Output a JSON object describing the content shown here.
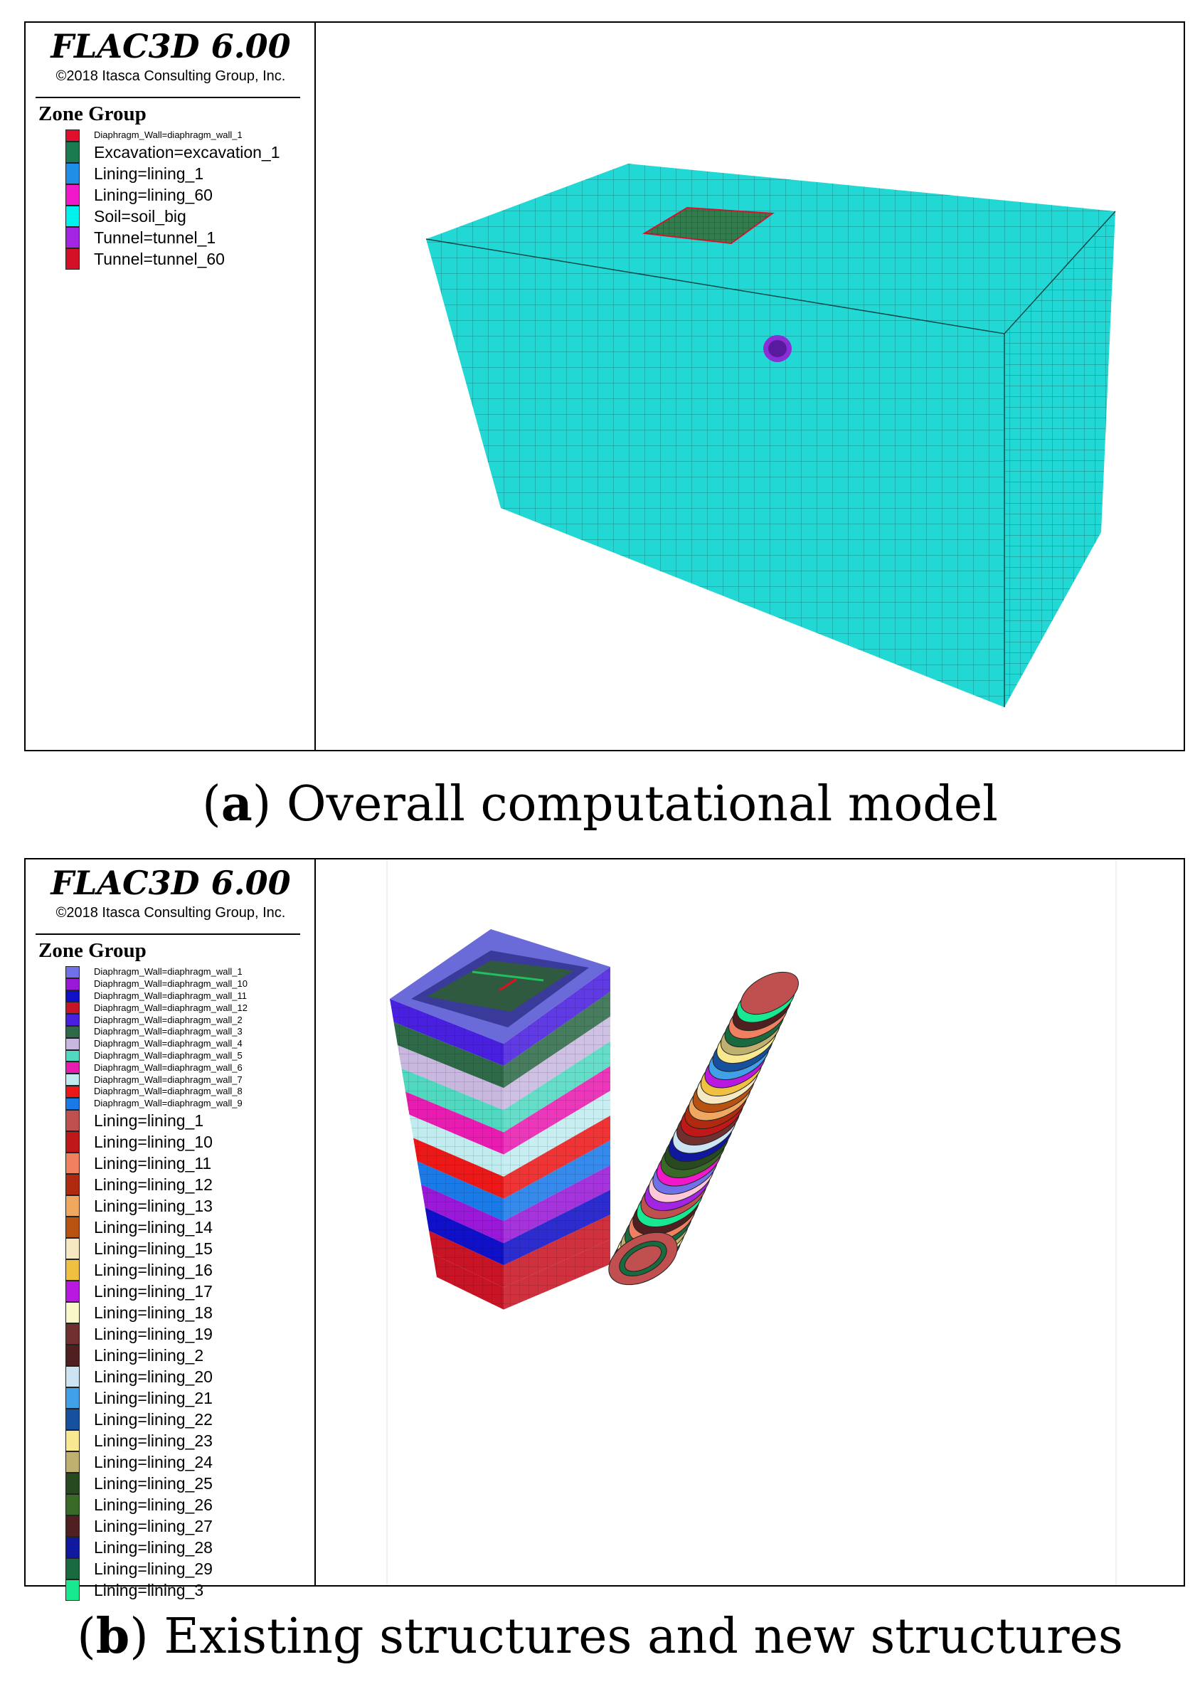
{
  "panel_a": {
    "app_title": "FLAC3D 6.00",
    "copyright": "©2018 Itasca Consulting Group, Inc.",
    "legend_title": "Zone Group",
    "legend_items": [
      {
        "label": "Diaphragm_Wall=diaphragm_wall_1",
        "color": "#e0102c",
        "size": "small"
      },
      {
        "label": "Excavation=excavation_1",
        "color": "#1a7a50",
        "size": "big"
      },
      {
        "label": "Lining=lining_1",
        "color": "#1f8ee6",
        "size": "big"
      },
      {
        "label": "Lining=lining_60",
        "color": "#f018c8",
        "size": "big"
      },
      {
        "label": "Soil=soil_big",
        "color": "#00f0ee",
        "size": "big"
      },
      {
        "label": "Tunnel=tunnel_1",
        "color": "#a424e4",
        "size": "big"
      },
      {
        "label": "Tunnel=tunnel_60",
        "color": "#d41026",
        "size": "big"
      }
    ],
    "model_colors": {
      "soil": "#22d8d4",
      "excavation": "#2f7e4c",
      "tunnel": "#8a2ed6",
      "mesh_line": "#0c4a4a"
    }
  },
  "panel_b": {
    "app_title": "FLAC3D 6.00",
    "copyright": "©2018 Itasca Consulting Group, Inc.",
    "legend_title": "Zone Group",
    "legend_items": [
      {
        "label": "Diaphragm_Wall=diaphragm_wall_1",
        "color": "#7070e8",
        "size": "small"
      },
      {
        "label": "Diaphragm_Wall=diaphragm_wall_10",
        "color": "#9a18d8",
        "size": "small"
      },
      {
        "label": "Diaphragm_Wall=diaphragm_wall_11",
        "color": "#1010c8",
        "size": "small"
      },
      {
        "label": "Diaphragm_Wall=diaphragm_wall_12",
        "color": "#c81424",
        "size": "small"
      },
      {
        "label": "Diaphragm_Wall=diaphragm_wall_2",
        "color": "#4a20e0",
        "size": "small"
      },
      {
        "label": "Diaphragm_Wall=diaphragm_wall_3",
        "color": "#2e6a48",
        "size": "small"
      },
      {
        "label": "Diaphragm_Wall=diaphragm_wall_4",
        "color": "#c8b8e0",
        "size": "small"
      },
      {
        "label": "Diaphragm_Wall=diaphragm_wall_5",
        "color": "#50d8c0",
        "size": "small"
      },
      {
        "label": "Diaphragm_Wall=diaphragm_wall_6",
        "color": "#e81cb0",
        "size": "small"
      },
      {
        "label": "Diaphragm_Wall=diaphragm_wall_7",
        "color": "#c0ecf0",
        "size": "small"
      },
      {
        "label": "Diaphragm_Wall=diaphragm_wall_8",
        "color": "#ec1818",
        "size": "small"
      },
      {
        "label": "Diaphragm_Wall=diaphragm_wall_9",
        "color": "#1a7ae8",
        "size": "small"
      },
      {
        "label": "Lining=lining_1",
        "color": "#c05050",
        "size": "big"
      },
      {
        "label": "Lining=lining_10",
        "color": "#c01818",
        "size": "big"
      },
      {
        "label": "Lining=lining_11",
        "color": "#f08060",
        "size": "big"
      },
      {
        "label": "Lining=lining_12",
        "color": "#b02a10",
        "size": "big"
      },
      {
        "label": "Lining=lining_13",
        "color": "#f0a860",
        "size": "big"
      },
      {
        "label": "Lining=lining_14",
        "color": "#b85210",
        "size": "big"
      },
      {
        "label": "Lining=lining_15",
        "color": "#f6e8c0",
        "size": "big"
      },
      {
        "label": "Lining=lining_16",
        "color": "#f0c040",
        "size": "big"
      },
      {
        "label": "Lining=lining_17",
        "color": "#b818e0",
        "size": "big"
      },
      {
        "label": "Lining=lining_18",
        "color": "#f8f8c8",
        "size": "big"
      },
      {
        "label": "Lining=lining_19",
        "color": "#703030",
        "size": "big"
      },
      {
        "label": "Lining=lining_2",
        "color": "#502020",
        "size": "big"
      },
      {
        "label": "Lining=lining_20",
        "color": "#cce4f4",
        "size": "big"
      },
      {
        "label": "Lining=lining_21",
        "color": "#40a0e8",
        "size": "big"
      },
      {
        "label": "Lining=lining_22",
        "color": "#1850a0",
        "size": "big"
      },
      {
        "label": "Lining=lining_23",
        "color": "#f8e890",
        "size": "big"
      },
      {
        "label": "Lining=lining_24",
        "color": "#c0b070",
        "size": "big"
      },
      {
        "label": "Lining=lining_25",
        "color": "#284a20",
        "size": "big"
      },
      {
        "label": "Lining=lining_26",
        "color": "#3a6a28",
        "size": "big"
      },
      {
        "label": "Lining=lining_27",
        "color": "#502020",
        "size": "big"
      },
      {
        "label": "Lining=lining_28",
        "color": "#1018a0",
        "size": "big"
      },
      {
        "label": "Lining=lining_29",
        "color": "#1a6a40",
        "size": "big"
      },
      {
        "label": "Lining=lining_3",
        "color": "#18e890",
        "size": "big"
      }
    ],
    "band_colors": [
      "#4a20e0",
      "#2e6a48",
      "#c8b8e0",
      "#50d8c0",
      "#e81cb0",
      "#c0ecf0",
      "#ec1818",
      "#1a7ae8",
      "#9a18d8",
      "#1010c8",
      "#c81424",
      "#c81424"
    ],
    "rim_color": "#6a6ad8",
    "ring_colors": [
      "#c05050",
      "#18e890",
      "#502020",
      "#f08060",
      "#1a6a40",
      "#c0b070",
      "#f8e890",
      "#1850a0",
      "#40a0e8",
      "#b818e0",
      "#f0c040",
      "#f6e8c0",
      "#b85210",
      "#f0a860",
      "#b02a10",
      "#c01818",
      "#703030",
      "#cce4f4",
      "#1018a0",
      "#284a20",
      "#3a6a28",
      "#f018c8",
      "#7070e8",
      "#ffc8d8",
      "#a424e4"
    ]
  },
  "captions": {
    "a": {
      "letter": "a",
      "text": " Overall computational model"
    },
    "b": {
      "letter": "b",
      "text": " Existing structures and new structures"
    }
  }
}
